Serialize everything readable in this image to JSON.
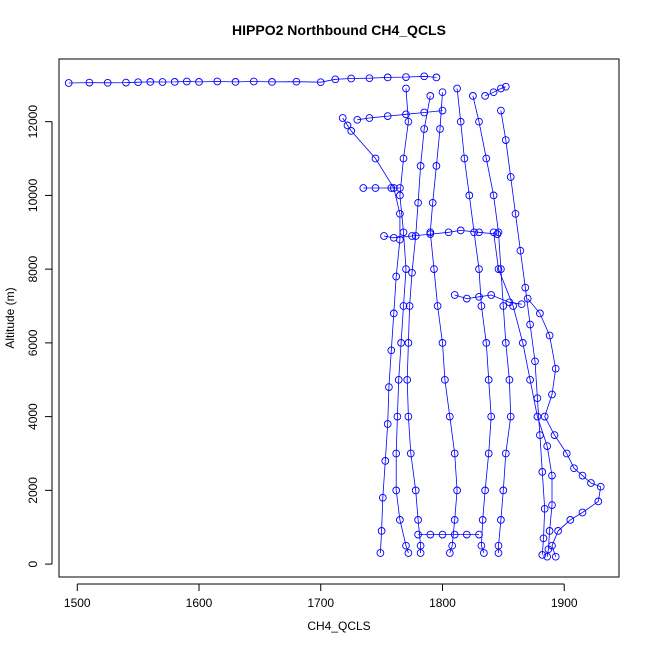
{
  "chart_data": {
    "type": "scatter",
    "title": "HIPPO2 Northbound CH4_QCLS",
    "xlabel": "CH4_QCLS",
    "ylabel": "Altitude (m)",
    "xlim": [
      1485,
      1945
    ],
    "ylim": [
      -350,
      13700
    ],
    "xticks": [
      1500,
      1600,
      1700,
      1800,
      1900
    ],
    "yticks": [
      0,
      2000,
      4000,
      6000,
      8000,
      10000,
      12000
    ],
    "grid": false,
    "style": {
      "marker": "open-circle",
      "connected": true,
      "color": "#0000ff"
    },
    "series": [
      {
        "name": "",
        "points": [
          [
            1493,
            13050
          ],
          [
            1510,
            13060
          ],
          [
            1525,
            13055
          ],
          [
            1540,
            13060
          ],
          [
            1550,
            13070
          ],
          [
            1560,
            13080
          ],
          [
            1570,
            13075
          ],
          [
            1580,
            13080
          ],
          [
            1590,
            13090
          ],
          [
            1600,
            13080
          ],
          [
            1615,
            13090
          ],
          [
            1630,
            13080
          ],
          [
            1645,
            13090
          ],
          [
            1660,
            13080
          ],
          [
            1680,
            13085
          ],
          [
            1700,
            13070
          ],
          [
            1712,
            13150
          ],
          [
            1725,
            13170
          ],
          [
            1740,
            13180
          ],
          [
            1755,
            13200
          ],
          [
            1770,
            13210
          ],
          [
            1785,
            13230
          ],
          [
            1795,
            13200
          ]
        ]
      },
      {
        "name": "",
        "points": [
          [
            1718,
            12100
          ],
          [
            1722,
            11900
          ],
          [
            1725,
            11750
          ],
          [
            1745,
            11000
          ],
          [
            1760,
            10200
          ],
          [
            1765,
            9500
          ],
          [
            1765,
            8800
          ],
          [
            1762,
            7800
          ],
          [
            1760,
            6800
          ],
          [
            1758,
            5800
          ],
          [
            1756,
            4800
          ],
          [
            1755,
            3800
          ],
          [
            1753,
            2800
          ],
          [
            1751,
            1800
          ],
          [
            1750,
            900
          ],
          [
            1749,
            300
          ]
        ]
      },
      {
        "name": "",
        "points": [
          [
            1770,
            12900
          ],
          [
            1772,
            12000
          ],
          [
            1768,
            11000
          ],
          [
            1765,
            10000
          ],
          [
            1768,
            9000
          ],
          [
            1770,
            8000
          ],
          [
            1768,
            7000
          ],
          [
            1766,
            6000
          ],
          [
            1764,
            5000
          ],
          [
            1763,
            4000
          ],
          [
            1762,
            3000
          ],
          [
            1762,
            2000
          ],
          [
            1765,
            1200
          ],
          [
            1770,
            500
          ],
          [
            1772,
            300
          ]
        ]
      },
      {
        "name": "",
        "points": [
          [
            1790,
            12700
          ],
          [
            1785,
            11800
          ],
          [
            1782,
            10800
          ],
          [
            1780,
            9800
          ],
          [
            1778,
            8900
          ],
          [
            1775,
            7900
          ],
          [
            1773,
            7000
          ],
          [
            1772,
            6000
          ],
          [
            1771,
            5000
          ],
          [
            1772,
            4000
          ],
          [
            1774,
            3000
          ],
          [
            1778,
            2000
          ],
          [
            1780,
            1200
          ],
          [
            1782,
            500
          ],
          [
            1782,
            300
          ]
        ]
      },
      {
        "name": "",
        "points": [
          [
            1800,
            12800
          ],
          [
            1798,
            11800
          ],
          [
            1795,
            10800
          ],
          [
            1792,
            9800
          ],
          [
            1790,
            9000
          ],
          [
            1793,
            8000
          ],
          [
            1796,
            7000
          ],
          [
            1800,
            6000
          ],
          [
            1802,
            5000
          ],
          [
            1806,
            4000
          ],
          [
            1810,
            3000
          ],
          [
            1812,
            2000
          ],
          [
            1810,
            1200
          ],
          [
            1808,
            500
          ],
          [
            1806,
            300
          ]
        ]
      },
      {
        "name": "",
        "points": [
          [
            1812,
            12900
          ],
          [
            1815,
            12000
          ],
          [
            1818,
            11000
          ],
          [
            1822,
            10000
          ],
          [
            1826,
            9000
          ],
          [
            1830,
            8000
          ],
          [
            1832,
            7000
          ],
          [
            1836,
            6000
          ],
          [
            1838,
            5000
          ],
          [
            1840,
            4000
          ],
          [
            1838,
            3000
          ],
          [
            1835,
            2000
          ],
          [
            1833,
            1200
          ],
          [
            1832,
            500
          ],
          [
            1834,
            300
          ]
        ]
      },
      {
        "name": "",
        "points": [
          [
            1825,
            12700
          ],
          [
            1830,
            12000
          ],
          [
            1836,
            11000
          ],
          [
            1842,
            10000
          ],
          [
            1846,
            9000
          ],
          [
            1848,
            8000
          ],
          [
            1850,
            7000
          ],
          [
            1852,
            6000
          ],
          [
            1855,
            5000
          ],
          [
            1856,
            4000
          ],
          [
            1852,
            3000
          ],
          [
            1850,
            2000
          ],
          [
            1848,
            1200
          ],
          [
            1846,
            500
          ],
          [
            1846,
            300
          ]
        ]
      },
      {
        "name": "",
        "points": [
          [
            1848,
            12300
          ],
          [
            1852,
            11500
          ],
          [
            1856,
            10500
          ],
          [
            1860,
            9500
          ],
          [
            1864,
            8500
          ],
          [
            1868,
            7500
          ],
          [
            1872,
            6500
          ],
          [
            1876,
            5500
          ],
          [
            1878,
            4500
          ],
          [
            1880,
            3500
          ],
          [
            1882,
            2500
          ],
          [
            1884,
            1500
          ],
          [
            1883,
            700
          ],
          [
            1882,
            250
          ]
        ]
      },
      {
        "name": "",
        "points": [
          [
            1842,
            9000
          ],
          [
            1846,
            8000
          ],
          [
            1858,
            7000
          ],
          [
            1866,
            6000
          ],
          [
            1872,
            5000
          ],
          [
            1878,
            4000
          ],
          [
            1886,
            3200
          ],
          [
            1890,
            2400
          ],
          [
            1890,
            1600
          ],
          [
            1888,
            900
          ],
          [
            1887,
            400
          ],
          [
            1886,
            200
          ]
        ]
      },
      {
        "name": "",
        "points": [
          [
            1870,
            7200
          ],
          [
            1880,
            6800
          ],
          [
            1888,
            6200
          ],
          [
            1893,
            5300
          ],
          [
            1890,
            4600
          ],
          [
            1884,
            4000
          ],
          [
            1892,
            3500
          ],
          [
            1902,
            3000
          ],
          [
            1908,
            2600
          ],
          [
            1915,
            2400
          ],
          [
            1922,
            2200
          ],
          [
            1930,
            2100
          ],
          [
            1928,
            1700
          ],
          [
            1915,
            1400
          ],
          [
            1905,
            1200
          ],
          [
            1895,
            900
          ],
          [
            1890,
            500
          ],
          [
            1893,
            200
          ]
        ]
      },
      {
        "name": "",
        "points": [
          [
            1752,
            8900
          ],
          [
            1760,
            8850
          ],
          [
            1775,
            8900
          ],
          [
            1790,
            8950
          ],
          [
            1805,
            9000
          ],
          [
            1815,
            9050
          ],
          [
            1830,
            9000
          ],
          [
            1845,
            8950
          ]
        ]
      },
      {
        "name": "",
        "points": [
          [
            1730,
            12050
          ],
          [
            1740,
            12100
          ],
          [
            1755,
            12150
          ],
          [
            1770,
            12200
          ],
          [
            1785,
            12250
          ],
          [
            1800,
            12300
          ]
        ]
      },
      {
        "name": "",
        "points": [
          [
            1735,
            10200
          ],
          [
            1745,
            10200
          ],
          [
            1758,
            10200
          ],
          [
            1765,
            10200
          ]
        ]
      },
      {
        "name": "",
        "points": [
          [
            1780,
            800
          ],
          [
            1790,
            800
          ],
          [
            1800,
            800
          ],
          [
            1810,
            800
          ],
          [
            1820,
            800
          ],
          [
            1830,
            800
          ]
        ]
      },
      {
        "name": "",
        "points": [
          [
            1810,
            7300
          ],
          [
            1820,
            7200
          ],
          [
            1830,
            7250
          ],
          [
            1840,
            7300
          ],
          [
            1855,
            7100
          ],
          [
            1865,
            7050
          ]
        ]
      },
      {
        "name": "",
        "points": [
          [
            1835,
            12700
          ],
          [
            1842,
            12800
          ],
          [
            1848,
            12900
          ],
          [
            1852,
            12950
          ]
        ]
      }
    ]
  }
}
